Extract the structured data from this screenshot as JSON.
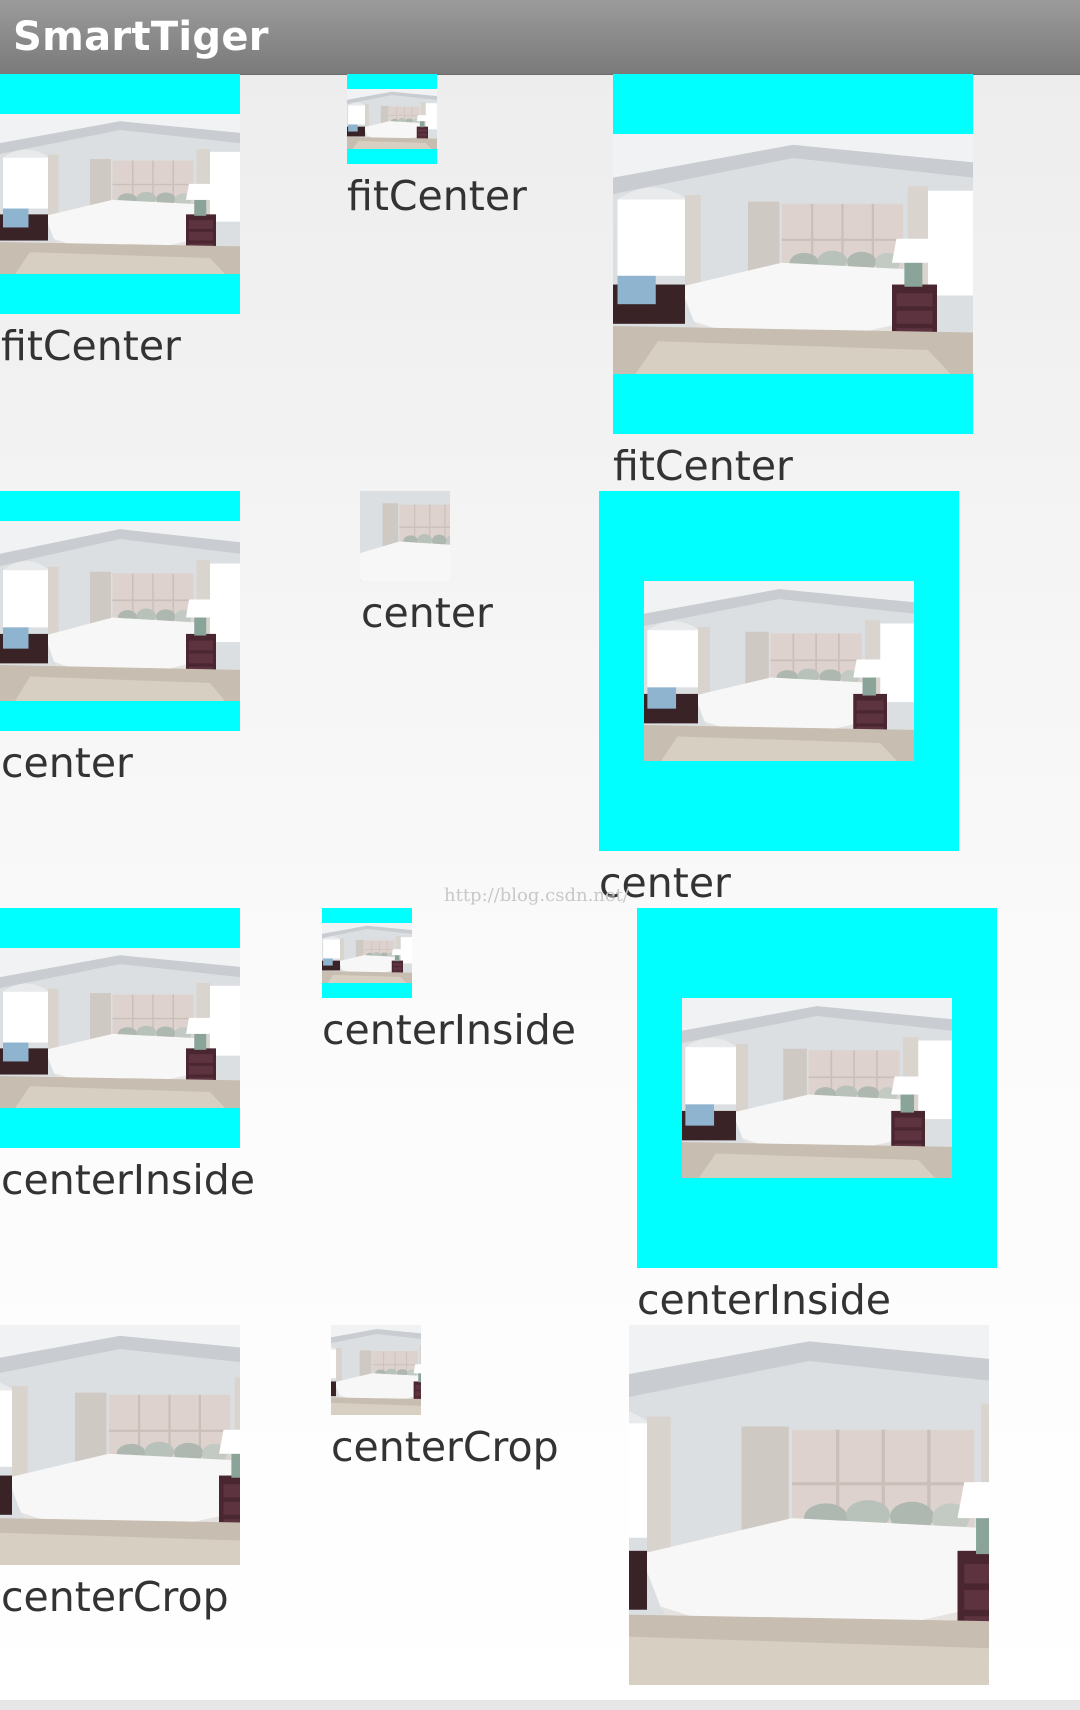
{
  "app": {
    "title": "SmartTiger"
  },
  "watermark": {
    "text": "http://blog.csdn.net/"
  },
  "demos": {
    "fit_center": {
      "small": "fitCenter",
      "tiny": "fitCenter",
      "large": "fitCenter"
    },
    "center": {
      "small": "center",
      "tiny": "center",
      "large": "center"
    },
    "center_inside": {
      "small": "centerInside",
      "tiny": "centerInside",
      "large": "centerInside"
    },
    "center_crop": {
      "small": "centerCrop",
      "tiny": "centerCrop",
      "large": "centerCrop"
    }
  },
  "colors": {
    "frame_background": "#00ffff",
    "label_text": "#333333",
    "title_text": "#ffffff"
  },
  "icons": {
    "photo": "bedroom-photo"
  }
}
